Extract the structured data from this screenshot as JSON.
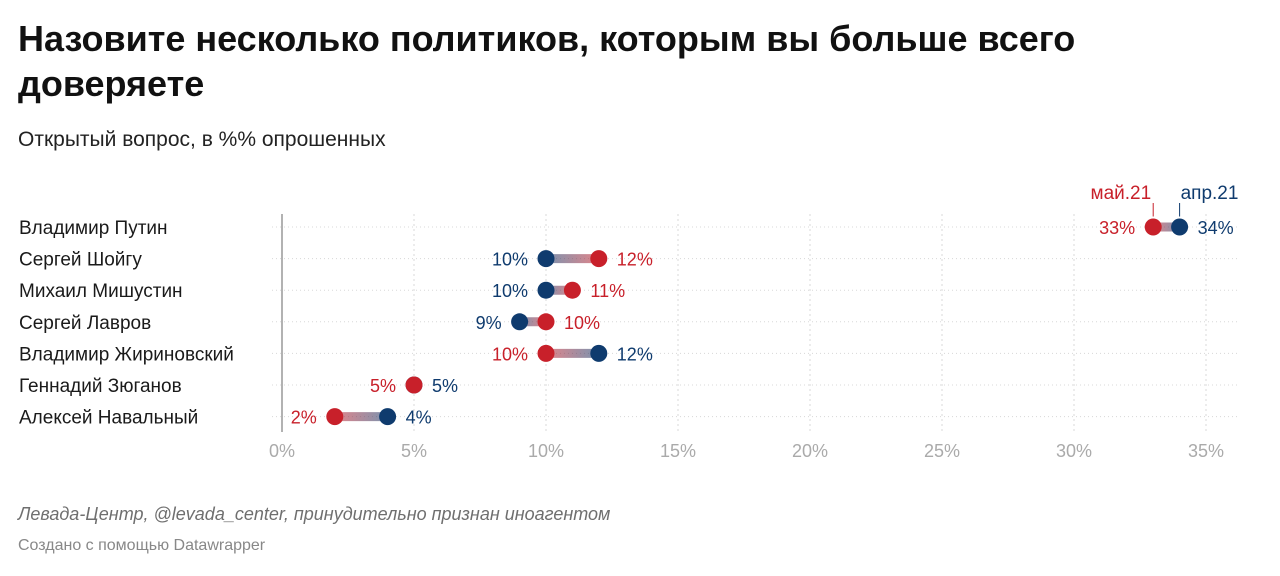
{
  "title": "Назовите несколько политиков, которым вы больше всего доверяете",
  "subtitle": "Открытый вопрос, в %% опрошенных",
  "source": "Левада-Центр, @levada_center, принудительно признан иноагентом",
  "credit": "Создано с помощью Datawrapper",
  "colors": {
    "may": "#c8202a",
    "apr": "#0f3b6e",
    "grid": "#d8d8d8",
    "axis": "#999999"
  },
  "chart_data": {
    "type": "dot-range",
    "title": "Назовите несколько политиков, которым вы больше всего доверяете",
    "subtitle": "Открытый вопрос, в %% опрошенных",
    "categories": [
      "Владимир Путин",
      "Сергей Шойгу",
      "Михаил Мишустин",
      "Сергей Лавров",
      "Владимир Жириновский",
      "Геннадий Зюганов",
      "Алексей Навальный"
    ],
    "series": [
      {
        "name": "май.21",
        "values": [
          33,
          12,
          11,
          10,
          10,
          5,
          2
        ]
      },
      {
        "name": "апр.21",
        "values": [
          34,
          10,
          10,
          9,
          12,
          5,
          4
        ]
      }
    ],
    "value_labels": {
      "май.21": [
        "33%",
        "12%",
        "11%",
        "10%",
        "10%",
        "5%",
        "2%"
      ],
      "апр.21": [
        "34%",
        "10%",
        "10%",
        "9%",
        "12%",
        "5%",
        "4%"
      ]
    },
    "xticks": [
      0,
      5,
      10,
      15,
      20,
      25,
      30,
      35
    ],
    "xtick_labels": [
      "0%",
      "5%",
      "10%",
      "15%",
      "20%",
      "25%",
      "30%",
      "35%"
    ],
    "xlim": [
      0,
      36
    ],
    "grid": true,
    "legend": "inline labels above top row"
  }
}
